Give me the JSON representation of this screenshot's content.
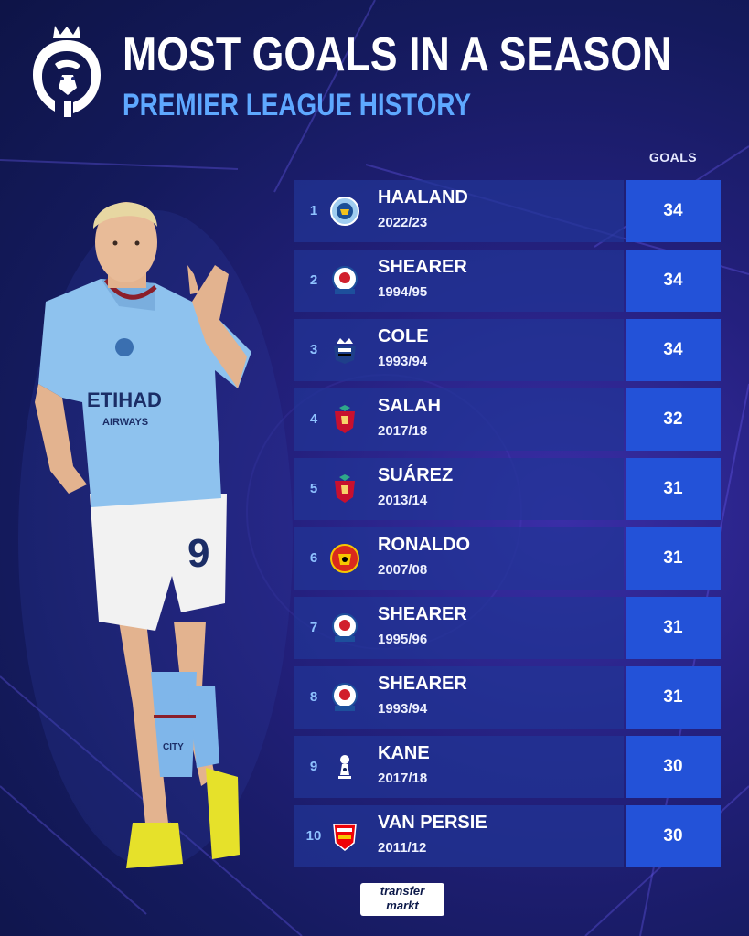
{
  "title": "MOST GOALS IN A SEASON",
  "subtitle": "PREMIER LEAGUE HISTORY",
  "goals_header": "GOALS",
  "brand": {
    "line1": "transfer",
    "line2": "markt"
  },
  "player_shirt": {
    "sponsor": "ETIHAD",
    "sponsor_sub": "AIRWAYS",
    "number": "9",
    "sock_text": "CITY"
  },
  "colors": {
    "accent_blue": "#5ea8ff",
    "goal_cell": "#2352d8",
    "rank_text": "#8fc2ff"
  },
  "rows": [
    {
      "rank": "1",
      "player": "HAALAND",
      "season": "2022/23",
      "goals": "34",
      "club_icon": "man-city-crest"
    },
    {
      "rank": "2",
      "player": "SHEARER",
      "season": "1994/95",
      "goals": "34",
      "club_icon": "blackburn-crest"
    },
    {
      "rank": "3",
      "player": "COLE",
      "season": "1993/94",
      "goals": "34",
      "club_icon": "newcastle-crest"
    },
    {
      "rank": "4",
      "player": "SALAH",
      "season": "2017/18",
      "goals": "32",
      "club_icon": "liverpool-crest"
    },
    {
      "rank": "5",
      "player": "SUÁREZ",
      "season": "2013/14",
      "goals": "31",
      "club_icon": "liverpool-crest"
    },
    {
      "rank": "6",
      "player": "RONALDO",
      "season": "2007/08",
      "goals": "31",
      "club_icon": "man-united-crest"
    },
    {
      "rank": "7",
      "player": "SHEARER",
      "season": "1995/96",
      "goals": "31",
      "club_icon": "blackburn-crest"
    },
    {
      "rank": "8",
      "player": "SHEARER",
      "season": "1993/94",
      "goals": "31",
      "club_icon": "blackburn-crest"
    },
    {
      "rank": "9",
      "player": "KANE",
      "season": "2017/18",
      "goals": "30",
      "club_icon": "tottenham-crest"
    },
    {
      "rank": "10",
      "player": "VAN PERSIE",
      "season": "2011/12",
      "goals": "30",
      "club_icon": "arsenal-crest"
    }
  ]
}
